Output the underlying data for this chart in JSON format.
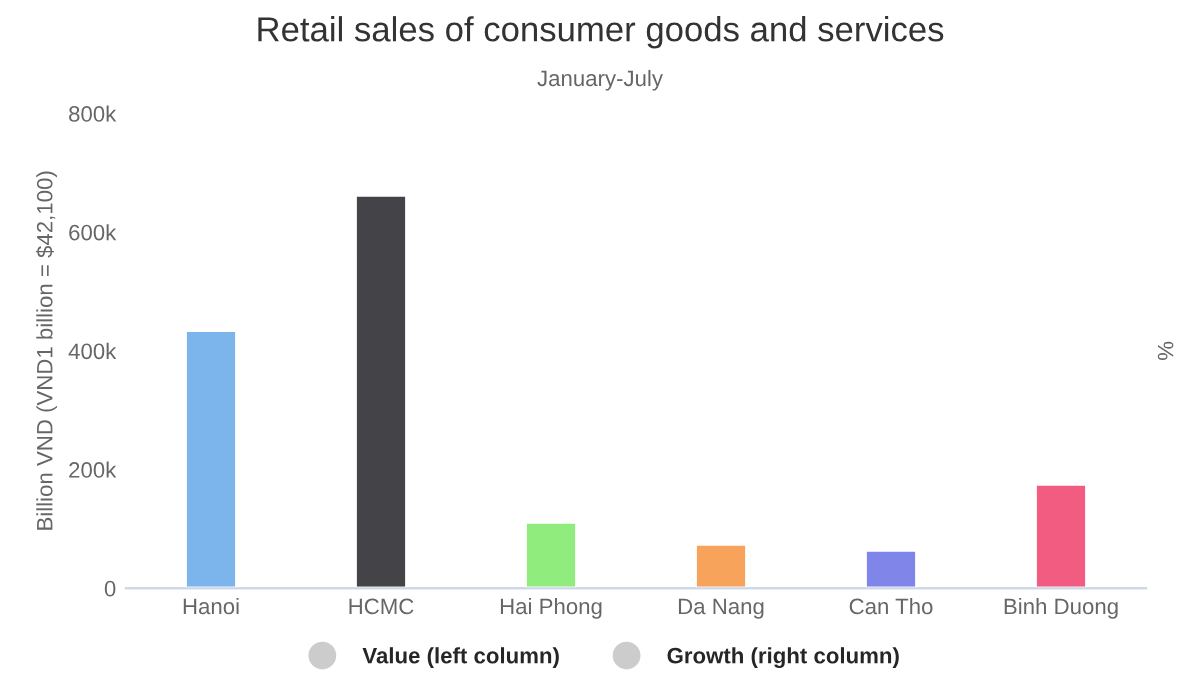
{
  "chart_data": {
    "type": "bar",
    "title": "Retail sales of consumer goods and services",
    "subtitle": "January-July",
    "ylabel": "Billion VND (VND1 billion = $42,100)",
    "y2label": "%",
    "categories": [
      "Hanoi",
      "HCMC",
      "Hai Phong",
      "Da Nang",
      "Can Tho",
      "Binh Duong"
    ],
    "series": [
      {
        "name": "Value (left column)",
        "color": "#cccccc",
        "colors": [
          "#7cb5ec",
          "#434348",
          "#90ed7d",
          "#f7a35c",
          "#8085e9",
          "#f15c80"
        ],
        "values": [
          434000,
          662000,
          111000,
          74000,
          64000,
          175000
        ]
      },
      {
        "name": "Growth (right column)",
        "color": "#cccccc",
        "axis": "y2",
        "values": [
          null,
          null,
          null,
          null,
          null,
          null
        ]
      }
    ],
    "ylim": [
      0,
      800000
    ],
    "yticks": [
      {
        "value": 0,
        "label": "0"
      },
      {
        "value": 200000,
        "label": "200k"
      },
      {
        "value": 400000,
        "label": "400k"
      },
      {
        "value": 600000,
        "label": "600k"
      },
      {
        "value": 800000,
        "label": "800k"
      }
    ],
    "grid": false,
    "legend": "bottom"
  }
}
